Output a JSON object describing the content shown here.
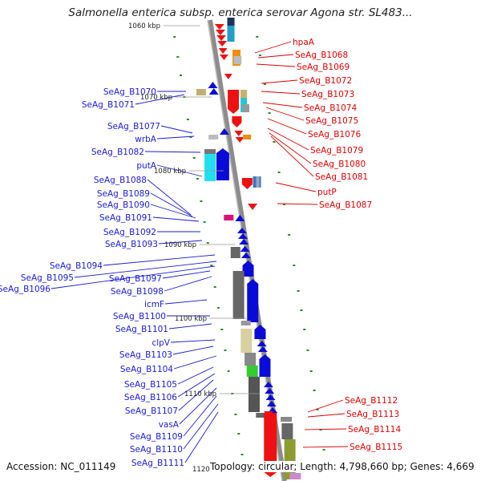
{
  "title": "Salmonella enterica subsp. enterica serovar Agona str. SL483...",
  "accession_text": "Accession: NC_011149",
  "summary_text": "Topology: circular; Length: 4,798,660 bp; Genes: 4,669",
  "colors": {
    "forward_strand": "#0b0bd9",
    "reverse_strand": "#ee1111",
    "backbone": "#8c8c8c",
    "left_label": "#1a1ad6",
    "right_label": "#dd0000",
    "gc_ticks": "#2a8a2a"
  },
  "kbp_markers": [
    "1060 kbp",
    "1070 kbp",
    "1080 kbp",
    "1090 kbp",
    "1100 kbp",
    "1110 kbp",
    "1120"
  ],
  "left_labels": [
    "SeAg_B1070",
    "SeAg_B1071",
    "SeAg_B1077",
    "wrbA",
    "SeAg_B1082",
    "putA",
    "SeAg_B1088",
    "SeAg_B1089",
    "SeAg_B1090",
    "SeAg_B1091",
    "SeAg_B1092",
    "SeAg_B1093",
    "SeAg_B1094",
    "SeAg_B1095",
    "SeAg_B1096",
    "SeAg_B1097",
    "SeAg_B1098",
    "icmF",
    "SeAg_B1100",
    "SeAg_B1101",
    "clpV",
    "SeAg_B1103",
    "SeAg_B1104",
    "SeAg_B1105",
    "SeAg_B1106",
    "SeAg_B1107",
    "vasA",
    "SeAg_B1109",
    "SeAg_B1110",
    "SeAg_B1111"
  ],
  "right_labels": [
    "hpaA",
    "SeAg_B1068",
    "SeAg_B1069",
    "SeAg_B1072",
    "SeAg_B1073",
    "SeAg_B1074",
    "SeAg_B1075",
    "SeAg_B1076",
    "SeAg_B1079",
    "SeAg_B1080",
    "SeAg_B1081",
    "putP",
    "SeAg_B1087",
    "SeAg_B1112",
    "SeAg_B1113",
    "SeAg_B1114",
    "SeAg_B1115"
  ]
}
